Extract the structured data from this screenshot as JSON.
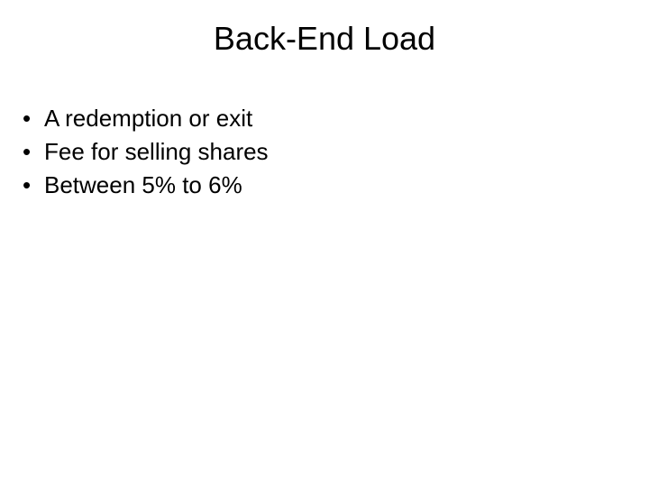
{
  "slide": {
    "title": "Back-End Load",
    "bullets": [
      "A redemption or exit",
      "Fee for selling shares",
      "Between 5% to 6%"
    ]
  }
}
